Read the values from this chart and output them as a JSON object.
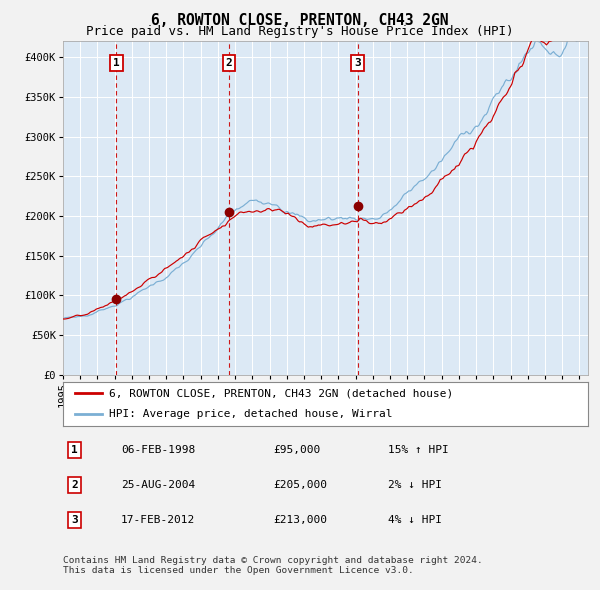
{
  "title": "6, ROWTON CLOSE, PRENTON, CH43 2GN",
  "subtitle": "Price paid vs. HM Land Registry's House Price Index (HPI)",
  "ylim": [
    0,
    420000
  ],
  "yticks": [
    0,
    50000,
    100000,
    150000,
    200000,
    250000,
    300000,
    350000,
    400000
  ],
  "ytick_labels": [
    "£0",
    "£50K",
    "£100K",
    "£150K",
    "£200K",
    "£250K",
    "£300K",
    "£350K",
    "£400K"
  ],
  "xtick_years": [
    1995,
    1996,
    1997,
    1998,
    1999,
    2000,
    2001,
    2002,
    2003,
    2004,
    2005,
    2006,
    2007,
    2008,
    2009,
    2010,
    2011,
    2012,
    2013,
    2014,
    2015,
    2016,
    2017,
    2018,
    2019,
    2020,
    2021,
    2022,
    2023,
    2024,
    2025
  ],
  "line_color_hpi": "#7bafd4",
  "line_color_price": "#cc0000",
  "dot_color": "#8b0000",
  "dashed_line_color": "#cc0000",
  "plot_bg_color": "#dce9f5",
  "fig_bg_color": "#f2f2f2",
  "grid_color": "#ffffff",
  "legend_label_price": "6, ROWTON CLOSE, PRENTON, CH43 2GN (detached house)",
  "legend_label_hpi": "HPI: Average price, detached house, Wirral",
  "table_entries": [
    {
      "num": "1",
      "date": "06-FEB-1998",
      "price": "£95,000",
      "hpi": "15% ↑ HPI"
    },
    {
      "num": "2",
      "date": "25-AUG-2004",
      "price": "£205,000",
      "hpi": "2% ↓ HPI"
    },
    {
      "num": "3",
      "date": "17-FEB-2012",
      "price": "£213,000",
      "hpi": "4% ↓ HPI"
    }
  ],
  "trans_years": [
    1998.093,
    2004.644,
    2012.13
  ],
  "trans_prices": [
    95000,
    205000,
    213000
  ],
  "trans_labels": [
    "1",
    "2",
    "3"
  ],
  "footnote1": "Contains HM Land Registry data © Crown copyright and database right 2024.",
  "footnote2": "This data is licensed under the Open Government Licence v3.0.",
  "title_fontsize": 10.5,
  "subtitle_fontsize": 9,
  "tick_fontsize": 7.5,
  "legend_fontsize": 8,
  "table_fontsize": 8,
  "footnote_fontsize": 6.8
}
